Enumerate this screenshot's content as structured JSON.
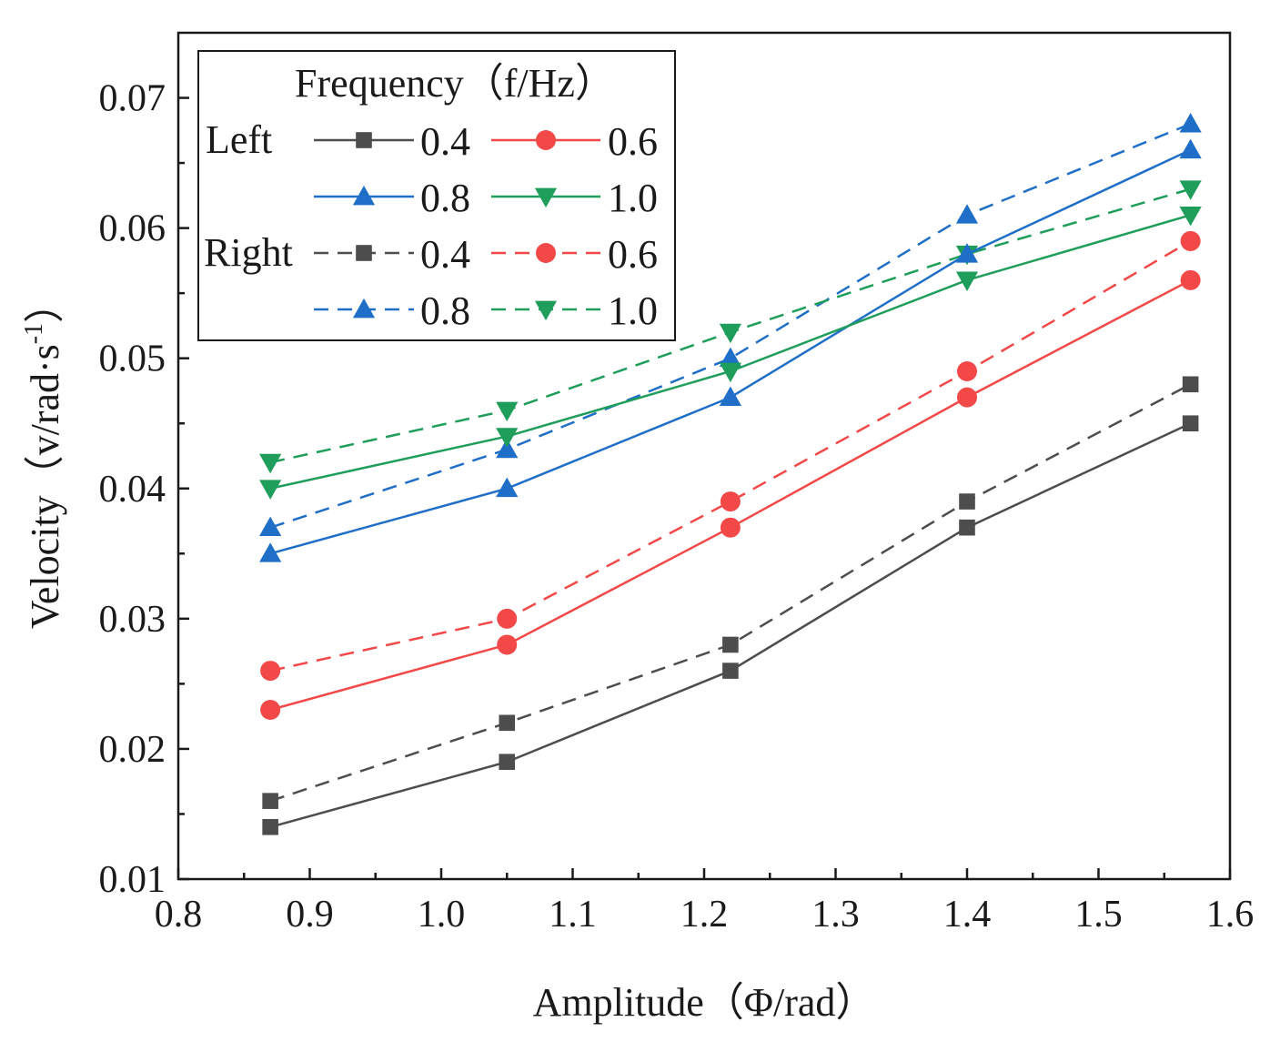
{
  "chart_data": {
    "type": "line",
    "title": "",
    "xlabel": "Amplitude（Φ/rad）",
    "ylabel_main": "Velocity（v/rad·s",
    "ylabel_sup": "-1",
    "ylabel_close": "）",
    "xlim": [
      0.8,
      1.6
    ],
    "ylim": [
      0.01,
      0.075
    ],
    "xticks": [
      "0.8",
      "0.9",
      "1.0",
      "1.1",
      "1.2",
      "1.3",
      "1.4",
      "1.5",
      "1.6"
    ],
    "yticks": [
      "0.01",
      "0.02",
      "0.03",
      "0.04",
      "0.05",
      "0.06",
      "0.07"
    ],
    "x": [
      0.87,
      1.05,
      1.22,
      1.4,
      1.57
    ],
    "legend": {
      "title": "Frequency（f/Hz）",
      "group_left": "Left",
      "group_right": "Right",
      "position": "top-left"
    },
    "series": [
      {
        "name": "0.4",
        "group": "Left",
        "color": "#4d4d4d",
        "marker": "square",
        "dash": false,
        "values": [
          0.014,
          0.019,
          0.026,
          0.037,
          0.045
        ]
      },
      {
        "name": "0.6",
        "group": "Left",
        "color": "#f24848",
        "marker": "circle",
        "dash": false,
        "values": [
          0.023,
          0.028,
          0.037,
          0.047,
          0.056
        ]
      },
      {
        "name": "0.8",
        "group": "Left",
        "color": "#1f6fc8",
        "marker": "triangle-up",
        "dash": false,
        "values": [
          0.035,
          0.04,
          0.047,
          0.058,
          0.066
        ]
      },
      {
        "name": "1.0",
        "group": "Left",
        "color": "#1e9e5a",
        "marker": "triangle-down",
        "dash": false,
        "values": [
          0.04,
          0.044,
          0.049,
          0.056,
          0.061
        ]
      },
      {
        "name": "0.4",
        "group": "Right",
        "color": "#4d4d4d",
        "marker": "square",
        "dash": true,
        "values": [
          0.016,
          0.022,
          0.028,
          0.039,
          0.048
        ]
      },
      {
        "name": "0.6",
        "group": "Right",
        "color": "#f24848",
        "marker": "circle",
        "dash": true,
        "values": [
          0.026,
          0.03,
          0.039,
          0.049,
          0.059
        ]
      },
      {
        "name": "0.8",
        "group": "Right",
        "color": "#1f6fc8",
        "marker": "triangle-up",
        "dash": true,
        "values": [
          0.037,
          0.043,
          0.05,
          0.061,
          0.068
        ]
      },
      {
        "name": "1.0",
        "group": "Right",
        "color": "#1e9e5a",
        "marker": "triangle-down",
        "dash": true,
        "values": [
          0.042,
          0.046,
          0.052,
          0.058,
          0.063
        ]
      }
    ]
  }
}
